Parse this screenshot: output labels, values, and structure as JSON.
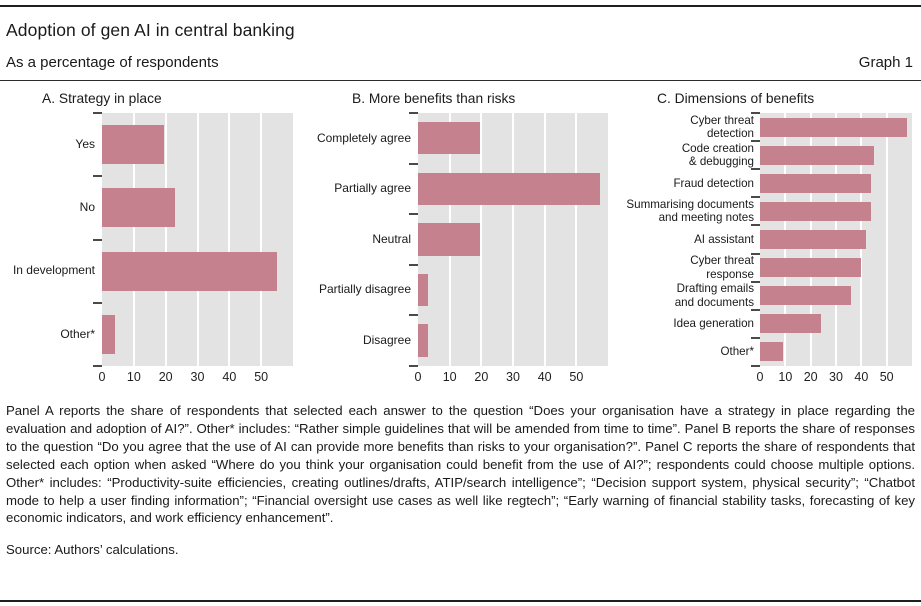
{
  "header": {
    "title": "Adoption of gen AI in central banking",
    "subtitle": "As a percentage of respondents",
    "graph_label": "Graph 1"
  },
  "chart_data": [
    {
      "type": "bar",
      "orientation": "horizontal",
      "title": "A. Strategy in place",
      "categories": [
        "Yes",
        "No",
        "In development",
        "Other*"
      ],
      "values": [
        19.5,
        23,
        55,
        4
      ],
      "xlim": [
        0,
        60
      ],
      "xticks": [
        0,
        10,
        20,
        30,
        40,
        50
      ],
      "grid": true,
      "bar_color": "#c6818f",
      "plot_background": "#e3e3e3",
      "xlabel": "",
      "ylabel": ""
    },
    {
      "type": "bar",
      "orientation": "horizontal",
      "title": "B. More benefits than risks",
      "categories": [
        "Completely agree",
        "Partially agree",
        "Neutral",
        "Partially disagree",
        "Disagree"
      ],
      "values": [
        19.5,
        57.5,
        19.5,
        3,
        3
      ],
      "xlim": [
        0,
        60
      ],
      "xticks": [
        0,
        10,
        20,
        30,
        40,
        50
      ],
      "grid": true,
      "bar_color": "#c6818f",
      "plot_background": "#e3e3e3",
      "xlabel": "",
      "ylabel": ""
    },
    {
      "type": "bar",
      "orientation": "horizontal",
      "title": "C. Dimensions of benefits",
      "categories": [
        "Cyber threat\ndetection",
        "Code creation\n& debugging",
        "Fraud detection",
        "Summarising documents\nand meeting notes",
        "AI assistant",
        "Cyber threat\nresponse",
        "Drafting emails\nand documents",
        "Idea generation",
        "Other*"
      ],
      "values": [
        58,
        45,
        44,
        44,
        42,
        40,
        36,
        24,
        9
      ],
      "xlim": [
        0,
        60
      ],
      "xticks": [
        0,
        10,
        20,
        30,
        40,
        50
      ],
      "grid": true,
      "bar_color": "#c6818f",
      "plot_background": "#e3e3e3",
      "xlabel": "",
      "ylabel": ""
    }
  ],
  "footnote": "Panel A reports the share of respondents that selected each answer to the question “Does your organisation have a strategy in place regarding the evaluation and adoption of AI?”. Other* includes: “Rather simple guidelines that will be amended from time to time”. Panel B reports the share of responses to the question “Do you agree that the use of AI can provide more benefits than risks to your organisation?”. Panel C reports the share of respondents that selected each option when asked “Where do you think your organisation could benefit from the use of AI?”; respondents could choose multiple options. Other* includes: “Productivity-suite efficiencies, creating outlines/drafts, ATIP/search intelligence”; “Decision support system, physical security”; “Chatbot mode to help a user finding information”; “Financial oversight use cases as well like regtech”; “Early warning of financial stability tasks, forecasting of key economic indicators, and work efficiency enhancement”.",
  "source": "Source: Authors’ calculations."
}
